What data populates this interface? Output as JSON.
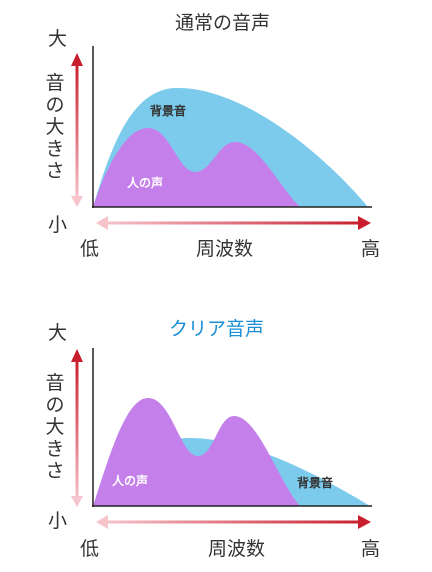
{
  "panels": [
    {
      "title": "通常の音声",
      "y_high": "大",
      "y_low": "小",
      "y_label": "音の大きさ",
      "x_low": "低",
      "x_high": "高",
      "x_label": "周波数",
      "background_label": "背景音",
      "voice_label": "人の声"
    },
    {
      "title": "クリア音声",
      "y_high": "大",
      "y_low": "小",
      "y_label": "音の大きさ",
      "x_low": "低",
      "x_high": "高",
      "x_label": "周波数",
      "background_label": "背景音",
      "voice_label": "人の声"
    }
  ],
  "colors": {
    "background_sound": "#7ccbec",
    "voice": "#c57fea",
    "axis_arrow": "#cc1f2f",
    "axis_arrow_light": "#f2b6bf",
    "title_highlight": "#1a8fd6"
  }
}
